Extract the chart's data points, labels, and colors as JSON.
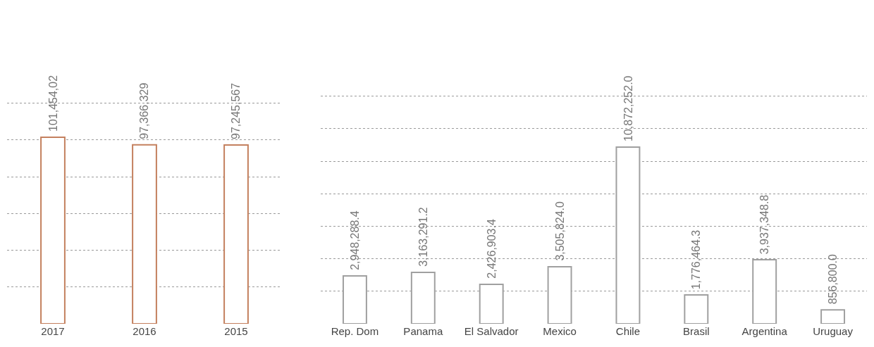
{
  "chart_data": [
    {
      "type": "bar",
      "categories": [
        "2017",
        "2016",
        "2015"
      ],
      "values": [
        101454020,
        97366329,
        97245567
      ],
      "value_labels": [
        "101,454,02",
        "97,366,329",
        "97,245,567"
      ],
      "color": "#c4805e",
      "grid": "y",
      "tick_labels": "x"
    },
    {
      "type": "bar",
      "categories": [
        "Rep. Dom",
        "Panama",
        "El Salvador",
        "Mexico",
        "Chile",
        "Brasil",
        "Argentina",
        "Uruguay"
      ],
      "values": [
        2948288.4,
        3163291.2,
        2426903.4,
        3505824.0,
        10872252.0,
        1776464.3,
        3937348.8,
        856800.0
      ],
      "value_labels": [
        "2,948,288.4",
        "3,163,291.2",
        "2,426,903.4",
        "3,505,824.0",
        "10,872,252.0",
        "1,776,464.3",
        "3,937,348.8",
        "856,800.0"
      ],
      "color": "#a0a0a0",
      "grid": "y",
      "tick_labels": "x"
    }
  ]
}
